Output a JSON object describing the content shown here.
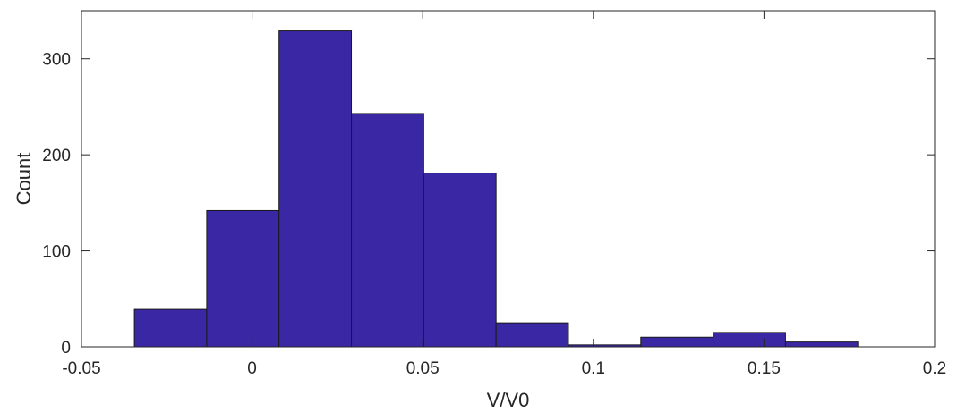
{
  "chart_data": {
    "type": "bar",
    "xlabel": "V/V0",
    "ylabel": "Count",
    "xlim": [
      -0.05,
      0.2
    ],
    "ylim": [
      0,
      350
    ],
    "grid": false,
    "bar_color": "#3a27a4",
    "bar_edge_color": "#1a1a1a",
    "x_ticks": [
      -0.05,
      0,
      0.05,
      0.1,
      0.15,
      0.2
    ],
    "x_tick_labels": [
      "-0.05",
      "0",
      "0.05",
      "0.1",
      "0.15",
      "0.2"
    ],
    "y_ticks": [
      0,
      100,
      200,
      300
    ],
    "y_tick_labels": [
      "0",
      "100",
      "200",
      "300"
    ],
    "bins": [
      {
        "x0": -0.0345,
        "x1": -0.0133,
        "count": 39
      },
      {
        "x0": -0.0133,
        "x1": 0.0079,
        "count": 142
      },
      {
        "x0": 0.0079,
        "x1": 0.0291,
        "count": 329
      },
      {
        "x0": 0.0291,
        "x1": 0.0503,
        "count": 243
      },
      {
        "x0": 0.0503,
        "x1": 0.0715,
        "count": 181
      },
      {
        "x0": 0.0715,
        "x1": 0.0927,
        "count": 25
      },
      {
        "x0": 0.0927,
        "x1": 0.1139,
        "count": 2
      },
      {
        "x0": 0.1139,
        "x1": 0.1351,
        "count": 10
      },
      {
        "x0": 0.1351,
        "x1": 0.1563,
        "count": 15
      },
      {
        "x0": 0.1563,
        "x1": 0.1775,
        "count": 5
      }
    ]
  }
}
